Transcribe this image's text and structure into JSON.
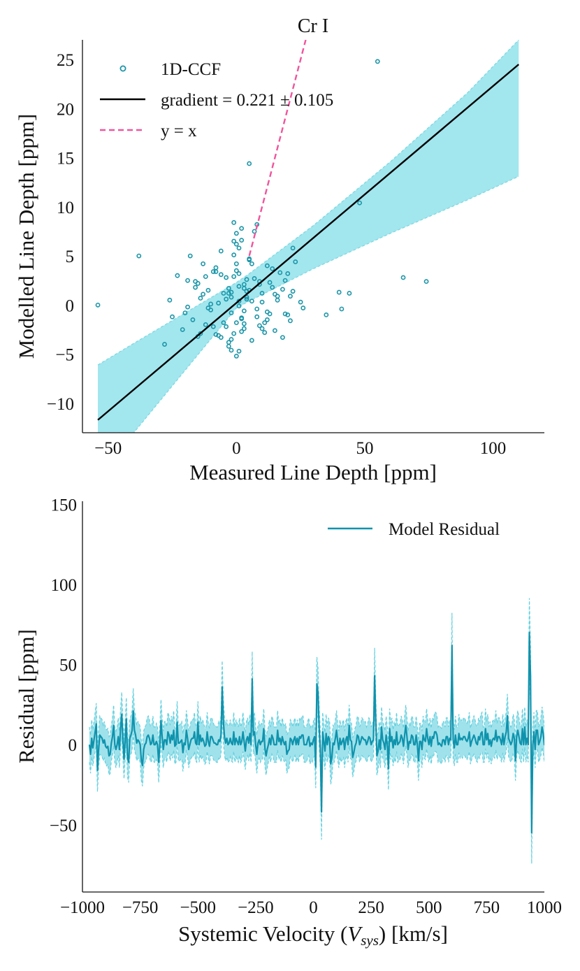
{
  "colors": {
    "scatter": "#1a95a8",
    "fit": "#000000",
    "identity": "#f0559c",
    "band_fill": "#a2e6ee",
    "band_edge": "#78d8e2",
    "residual": "#0f93ad",
    "residual_band": "#8fdde8",
    "residual_band_edge": "#62d0df"
  },
  "chart_data": [
    {
      "id": "cr-scatter",
      "type": "scatter",
      "title": "Cr I",
      "xlabel": "Measured Line Depth [ppm]",
      "ylabel": "Modelled Line Depth [ppm]",
      "xlim": [
        -60,
        120
      ],
      "ylim": [
        -13,
        27
      ],
      "xticks": [
        -50,
        0,
        50,
        100
      ],
      "yticks": [
        -10,
        -5,
        0,
        5,
        10,
        15,
        20,
        25
      ],
      "xtick_labels": [
        "−50",
        "0",
        "50",
        "100"
      ],
      "ytick_labels": [
        "−10",
        "−5",
        "0",
        "5",
        "10",
        "15",
        "20",
        "25"
      ],
      "legend_position": "top-left",
      "legend": [
        {
          "key": "points",
          "label": "1D-CCF"
        },
        {
          "key": "fit",
          "label": "gradient = 0.221 ± 0.105"
        },
        {
          "key": "identity",
          "label": "y = x"
        }
      ],
      "fit": {
        "x": [
          -54,
          110
        ],
        "y": [
          -11.7,
          24.5
        ]
      },
      "identity_line": {
        "x": [
          5,
          27
        ],
        "y": [
          5,
          27
        ]
      },
      "band": {
        "x": [
          -54,
          -40,
          0,
          5,
          30,
          60,
          90,
          110
        ],
        "upper": [
          -6.1,
          -3.9,
          2.3,
          3.2,
          8.1,
          14.6,
          21.6,
          27
        ],
        "lower": [
          -13,
          -13,
          -0.3,
          0.4,
          3.7,
          7.3,
          10.7,
          13.1
        ]
      },
      "points": {
        "x": [
          -54,
          -38,
          -28,
          -26,
          -25,
          -23,
          -21,
          -19,
          -18,
          -17,
          -16,
          -15,
          -14,
          -13,
          -12,
          -11,
          -10,
          -9,
          -8,
          -7,
          -6,
          -5,
          -4,
          -3,
          -2,
          -1,
          0,
          1,
          2,
          3,
          4,
          5,
          6,
          7,
          8,
          9,
          10,
          11,
          12,
          13,
          14,
          15,
          16,
          17,
          18,
          19,
          20,
          21,
          22,
          23,
          25,
          26,
          35,
          40,
          41,
          44,
          48,
          55,
          65,
          74,
          5,
          8,
          10,
          12,
          -20,
          -15,
          -11,
          -8,
          -5,
          -3,
          0,
          2,
          4,
          6,
          9,
          14,
          18,
          -13,
          -9,
          -6,
          -2,
          1,
          3,
          7,
          11,
          16,
          20,
          -19,
          -12,
          -7,
          -4,
          -1,
          2,
          5,
          8,
          13,
          19,
          22,
          -16,
          -10,
          -6,
          -3,
          0,
          3,
          6,
          10,
          15,
          21,
          -14,
          -8,
          -2,
          1,
          4,
          9,
          12,
          -1,
          0,
          1,
          2,
          -2,
          -1,
          0,
          1,
          3,
          -3,
          -2,
          0,
          2,
          4,
          -4,
          -1,
          1,
          3,
          5
        ],
        "y": [
          0,
          5,
          -4,
          0.5,
          -1.2,
          3,
          -2.5,
          2.5,
          5,
          -1.5,
          1.8,
          -3.2,
          0.7,
          4.2,
          -2,
          1.5,
          -0.5,
          3.4,
          -3,
          0.2,
          5.5,
          -1.8,
          2.8,
          -4.2,
          0.8,
          6.5,
          -5.2,
          3.2,
          7.8,
          -2.4,
          1.4,
          4.6,
          -3.6,
          7.5,
          -1.2,
          2.1,
          0.3,
          -2.8,
          4,
          -0.9,
          1.8,
          -2.6,
          0.5,
          3.3,
          -3.3,
          2.5,
          -1,
          0.9,
          5.8,
          4.4,
          0.3,
          -0.3,
          -1,
          1.3,
          -0.4,
          1.2,
          10.4,
          24.8,
          2.8,
          2.4,
          14.4,
          8.2,
          1.2,
          -1.5,
          -0.8,
          2.2,
          -0.3,
          3.8,
          1.2,
          -3.8,
          4.2,
          -1.4,
          2.6,
          0.4,
          -2.1,
          3.7,
          1.6,
          1.1,
          -2.2,
          3.1,
          -4.6,
          1.9,
          -0.6,
          2.7,
          -1.8,
          0.9,
          3.2,
          -0.2,
          2.9,
          -3.1,
          0.6,
          5.1,
          -2.7,
          1.5,
          -0.4,
          2.3,
          -0.9,
          1.4,
          2.4,
          0.1,
          -3.3,
          1.7,
          6.2,
          -1.9,
          4.2,
          -2.4,
          1.1,
          -1.6,
          -2.9,
          3.4,
          1.3,
          -4.7,
          0.8,
          2.4,
          -0.7,
          8.4,
          7.3,
          5.8,
          6.6,
          -3.5,
          -2.9,
          -1.8,
          0.4,
          2.1,
          1.2,
          -0.8,
          3.5,
          -1.3,
          0.6,
          -2.2,
          2.9,
          -0.1,
          1.7,
          4.7
        ]
      }
    },
    {
      "id": "residual-line",
      "type": "line",
      "title": "",
      "xlabel": "Systemic Velocity ",
      "xlabel_var": "V",
      "xlabel_sub": "sys",
      "xlabel_units": " [km/s]",
      "ylabel": "Residual [ppm]",
      "xlim": [
        -1000,
        1000
      ],
      "ylim": [
        -92,
        152
      ],
      "xticks": [
        -1000,
        -750,
        -500,
        -250,
        0,
        250,
        500,
        750,
        1000
      ],
      "xtick_labels": [
        "−1000",
        "−750",
        "−500",
        "−250",
        "0",
        "250",
        "500",
        "750",
        "1000"
      ],
      "yticks": [
        -50,
        0,
        50,
        100,
        150
      ],
      "ytick_labels": [
        "−50",
        "0",
        "50",
        "100",
        "150"
      ],
      "legend_position": "top-right",
      "legend": [
        {
          "key": "residual",
          "label": "Model Residual"
        }
      ],
      "x_start": -970,
      "x_step": 5,
      "residual_values": [
        0,
        -6,
        4,
        -2,
        3,
        8,
        13,
        -16,
        -3,
        6,
        5,
        4,
        1,
        3,
        -1,
        -2,
        -1,
        -7,
        -6,
        1,
        5,
        12,
        0,
        -3,
        0,
        5,
        -3,
        10,
        19,
        4,
        -9,
        3,
        16,
        -8,
        -11,
        4,
        6,
        9,
        21,
        9,
        6,
        1,
        3,
        2,
        0,
        -10,
        -13,
        -3,
        0,
        1,
        5,
        6,
        4,
        0,
        1,
        6,
        0,
        0,
        2,
        0,
        -11,
        0,
        15,
        5,
        -3,
        3,
        3,
        0,
        8,
        6,
        1,
        6,
        3,
        9,
        -1,
        0,
        14,
        1,
        1,
        2,
        3,
        -5,
        1,
        0,
        9,
        4,
        -3,
        0,
        3,
        4,
        4,
        8,
        1,
        0,
        14,
        0,
        6,
        2,
        4,
        2,
        -1,
        0,
        8,
        2,
        -1,
        5,
        5,
        3,
        1,
        1,
        0,
        0,
        3,
        2,
        6,
        36,
        15,
        5,
        1,
        4,
        0,
        1,
        4,
        1,
        0,
        8,
        0,
        4,
        2,
        0,
        5,
        0,
        2,
        8,
        2,
        -4,
        3,
        5,
        1,
        7,
        0,
        41,
        6,
        8,
        0,
        -6,
        1,
        3,
        0,
        2,
        2,
        10,
        -2,
        -7,
        -3,
        0,
        4,
        0,
        6,
        4,
        0,
        0,
        0,
        9,
        2,
        4,
        0,
        5,
        2,
        0,
        2,
        -6,
        -4,
        -3,
        4,
        3,
        0,
        3,
        5,
        0,
        4,
        0,
        5,
        4,
        6,
        6,
        0,
        0,
        0,
        3,
        5,
        -1,
        1,
        0,
        3,
        5,
        -14,
        38,
        32,
        10,
        -2,
        -42,
        8,
        2,
        -4,
        7,
        0,
        5,
        3,
        -12,
        -8,
        1,
        0,
        4,
        9,
        2,
        -3,
        4,
        0,
        2,
        4,
        -3,
        3,
        5,
        0,
        12,
        3,
        2,
        -8,
        -5,
        -1,
        1,
        6,
        5,
        0,
        2,
        5,
        4,
        3,
        3,
        0,
        2,
        5,
        4,
        0,
        2,
        3,
        43,
        15,
        -7,
        -4,
        3,
        -3,
        11,
        3,
        1,
        -3,
        6,
        0,
        -15,
        10,
        2,
        5,
        -2,
        3,
        0,
        8,
        0,
        1,
        2,
        6,
        4,
        -1,
        6,
        12,
        5,
        -3,
        2,
        1,
        6,
        5,
        0,
        0,
        6,
        0,
        -10,
        2,
        2,
        -3,
        6,
        3,
        2,
        10,
        4,
        0,
        5,
        -1,
        5,
        4,
        8,
        8,
        6,
        0,
        1,
        0,
        -1,
        3,
        3,
        0,
        5,
        5,
        0,
        4,
        3,
        62,
        3,
        -2,
        6,
        0,
        0,
        7,
        3,
        4,
        3,
        5,
        5,
        3,
        2,
        4,
        8,
        -1,
        2,
        4,
        6,
        4,
        1,
        0,
        5,
        3,
        7,
        8,
        0,
        0,
        10,
        3,
        7,
        0,
        3,
        -1,
        3,
        4,
        3,
        9,
        2,
        5,
        5,
        3,
        0,
        7,
        0,
        5,
        8,
        18,
        4,
        2,
        0,
        2,
        7,
        4,
        -10,
        5,
        9,
        5,
        1,
        0,
        10,
        0,
        11,
        0,
        4,
        0,
        70,
        43,
        -55,
        0,
        8,
        -3,
        9,
        9,
        0,
        2,
        5,
        11,
        7,
        0,
        5,
        0,
        -4,
        2,
        5,
        10,
        2,
        -4
      ]
    }
  ]
}
